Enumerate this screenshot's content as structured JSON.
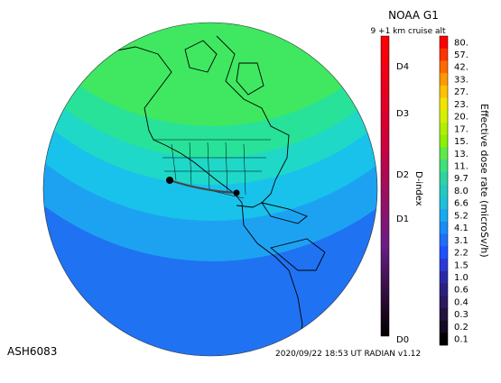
{
  "header": {
    "title": "NOAA G1",
    "subtitle": "9 +1 km cruise alt"
  },
  "footer": {
    "left_id": "ASH6083",
    "timestamp_model": "2020/09/22 18:53 UT RADIAN v1.12"
  },
  "d_index_bar": {
    "axis_label": "D-index",
    "labels": [
      "D4",
      "D3",
      "D2",
      "D1",
      "D0"
    ],
    "colors": {
      "top": "#ff0000",
      "mid": "#5a1f7a",
      "bottom": "#000000"
    }
  },
  "dose_bar": {
    "axis_label": "Effective dose rate (microSv/h)",
    "values": [
      "80.",
      "57.",
      "42.",
      "33.",
      "27.",
      "23.",
      "20.",
      "17.",
      "15.",
      "13.",
      "11.",
      "9.7",
      "8.0",
      "6.6",
      "5.2",
      "4.1",
      "3.1",
      "2.2",
      "1.5",
      "1.0",
      "0.6",
      "0.4",
      "0.3",
      "0.2",
      "0.1"
    ],
    "colors": [
      "#ff0000",
      "#ff3300",
      "#ff6a00",
      "#ff9900",
      "#ffc200",
      "#f2e400",
      "#d6f000",
      "#b0f000",
      "#8cf000",
      "#5fe84a",
      "#3ee07a",
      "#2fd2a0",
      "#26c8c0",
      "#1ec0dc",
      "#17aaf0",
      "#1a8cf5",
      "#1f6ef7",
      "#2050ff",
      "#2a3ad8",
      "#2a2aa8",
      "#2b2080",
      "#2a1a60",
      "#22123f",
      "#140a24",
      "#000000"
    ]
  },
  "map": {
    "route_markers": [
      "origin-airport",
      "destination-airport"
    ],
    "zone_colors": {
      "polar": "#3fe860",
      "high": "#28e29a",
      "mid_high": "#1fd8c8",
      "mid": "#19c2ea",
      "low_mid": "#1da2f2",
      "low": "#1f72f2"
    }
  }
}
